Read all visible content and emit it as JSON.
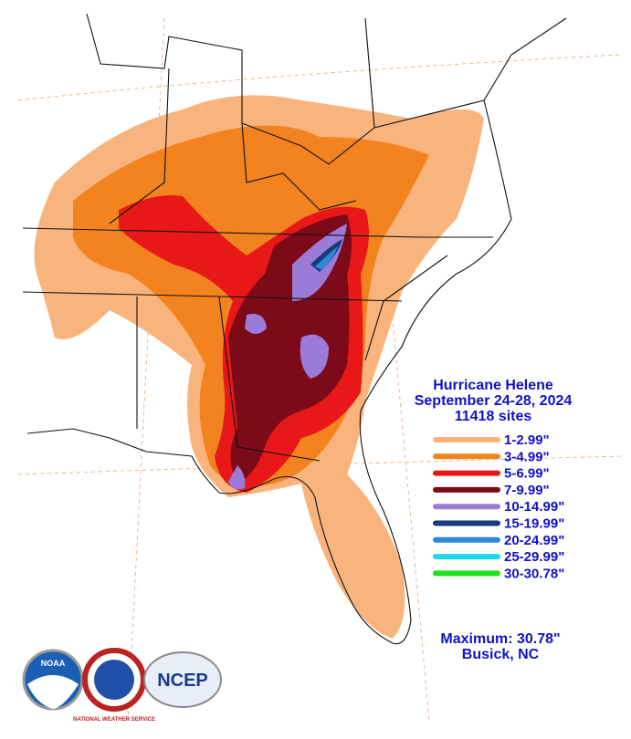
{
  "title": [
    "Hurricane Helene",
    "September 24-28, 2024",
    "11418 sites"
  ],
  "legend": [
    {
      "label": "1-2.99\"",
      "color": "#f8b47c"
    },
    {
      "label": "3-4.99\"",
      "color": "#f3831f"
    },
    {
      "label": "5-6.99\"",
      "color": "#e81818"
    },
    {
      "label": "7-9.99\"",
      "color": "#7c0a18"
    },
    {
      "label": "10-14.99\"",
      "color": "#9b7ad8"
    },
    {
      "label": "15-19.99\"",
      "color": "#163a7a"
    },
    {
      "label": "20-24.99\"",
      "color": "#2f88d8"
    },
    {
      "label": "25-29.99\"",
      "color": "#1cd8ea"
    },
    {
      "label": "30-30.78\"",
      "color": "#22e01e"
    }
  ],
  "maximum": "Maximum:  30.78\"",
  "location": "Busick, NC",
  "logos": [
    "NOAA",
    "NATIONAL WEATHER SERVICE",
    "NCEP"
  ]
}
